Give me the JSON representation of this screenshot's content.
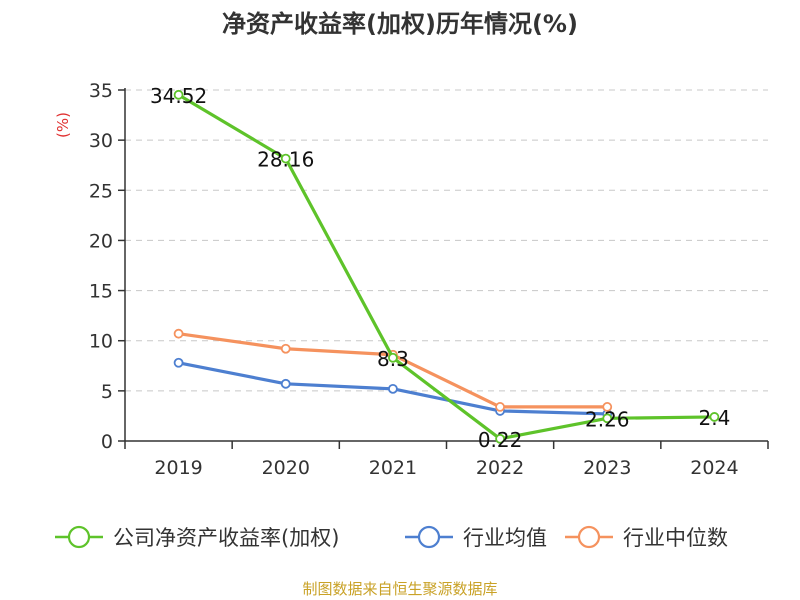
{
  "chart_data": {
    "type": "line",
    "title": "净资产收益率(加权)历年情况(%)",
    "ylabel": "(%)",
    "xlabel": "",
    "ylim": [
      0,
      35
    ],
    "yticks": [
      0,
      5,
      10,
      15,
      20,
      25,
      30,
      35
    ],
    "categories": [
      "2019",
      "2020",
      "2021",
      "2022",
      "2023",
      "2024"
    ],
    "grid": true,
    "legend_position": "bottom",
    "series": [
      {
        "name": "公司净资产收益率(加权)",
        "color": "#5ec32a",
        "values": [
          34.52,
          28.16,
          8.3,
          0.22,
          2.26,
          2.4
        ],
        "labels": [
          "34.52",
          "28.16",
          "8.3",
          "0.22",
          "2.26",
          "2.4"
        ]
      },
      {
        "name": "行业均值",
        "color": "#4d7fd0",
        "values": [
          7.8,
          5.7,
          5.2,
          3.0,
          2.7,
          null
        ]
      },
      {
        "name": "行业中位数",
        "color": "#f5925e",
        "values": [
          10.7,
          9.2,
          8.6,
          3.4,
          3.4,
          null
        ]
      }
    ]
  },
  "source": "制图数据来自恒生聚源数据库"
}
